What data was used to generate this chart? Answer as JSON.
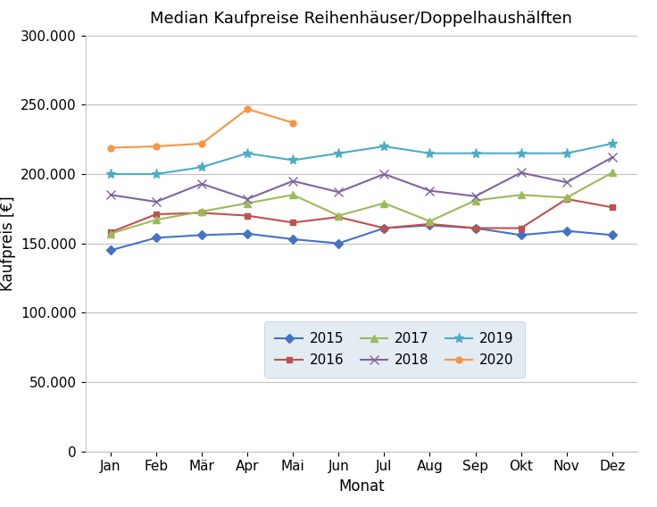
{
  "title": "Median Kaufpreise Reihenhäuser/Doppelhaushälften",
  "xlabel": "Monat",
  "ylabel": "Kaufpreis [€]",
  "months": [
    "Jan",
    "Feb",
    "Mär",
    "Apr",
    "Mai",
    "Jun",
    "Jul",
    "Aug",
    "Sep",
    "Okt",
    "Nov",
    "Dez"
  ],
  "series_order": [
    "2015",
    "2016",
    "2017",
    "2018",
    "2019",
    "2020"
  ],
  "series": {
    "2015": {
      "values": [
        145000,
        154000,
        156000,
        157000,
        153000,
        150000,
        161000,
        163000,
        161000,
        156000,
        159000,
        156000
      ],
      "color": "#4472C4",
      "marker": "D",
      "markersize": 5
    },
    "2016": {
      "values": [
        158000,
        171000,
        172000,
        170000,
        165000,
        169000,
        161000,
        164000,
        161000,
        161000,
        182000,
        176000
      ],
      "color": "#C0504D",
      "marker": "s",
      "markersize": 5
    },
    "2017": {
      "values": [
        157000,
        167000,
        173000,
        179000,
        185000,
        170000,
        179000,
        166000,
        181000,
        185000,
        183000,
        201000
      ],
      "color": "#9BBB59",
      "marker": "^",
      "markersize": 6
    },
    "2018": {
      "values": [
        185000,
        180000,
        193000,
        182000,
        195000,
        187000,
        200000,
        188000,
        184000,
        201000,
        194000,
        212000
      ],
      "color": "#8064A2",
      "marker": "x",
      "markersize": 7
    },
    "2019": {
      "values": [
        200000,
        200000,
        205000,
        215000,
        210000,
        215000,
        220000,
        215000,
        215000,
        215000,
        215000,
        222000
      ],
      "color": "#4BACC6",
      "marker": "*",
      "markersize": 8
    },
    "2020": {
      "values": [
        219000,
        220000,
        222000,
        247000,
        237000,
        null,
        null,
        null,
        null,
        null,
        null,
        null
      ],
      "color": "#F79646",
      "marker": "o",
      "markersize": 5
    }
  },
  "ylim": [
    0,
    300000
  ],
  "yticks": [
    0,
    50000,
    100000,
    150000,
    200000,
    250000,
    300000
  ],
  "background_color": "#ffffff",
  "legend_bg": "#dce6f1",
  "legend_rows": [
    [
      "2015",
      "2016",
      "2017"
    ],
    [
      "2018",
      "2019",
      "2020"
    ]
  ]
}
